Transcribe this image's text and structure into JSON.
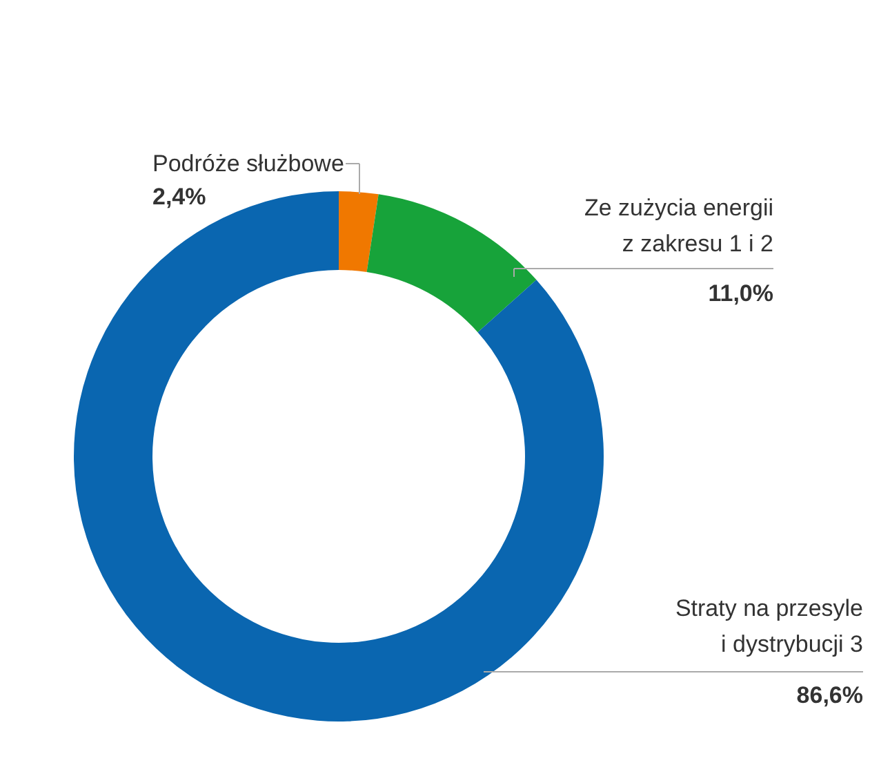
{
  "chart_data": {
    "type": "donut",
    "categories": [
      "Podróże służbowe",
      "Ze zużycia energii\nz zakresu 1 i 2",
      "Straty na przesyle\ni dystrybucji 3"
    ],
    "values": [
      2.4,
      11.0,
      86.6
    ],
    "value_labels": [
      "2,4%",
      "11,0%",
      "86,6%"
    ],
    "colors": [
      "#f07800",
      "#17a33a",
      "#0a66b0"
    ]
  }
}
